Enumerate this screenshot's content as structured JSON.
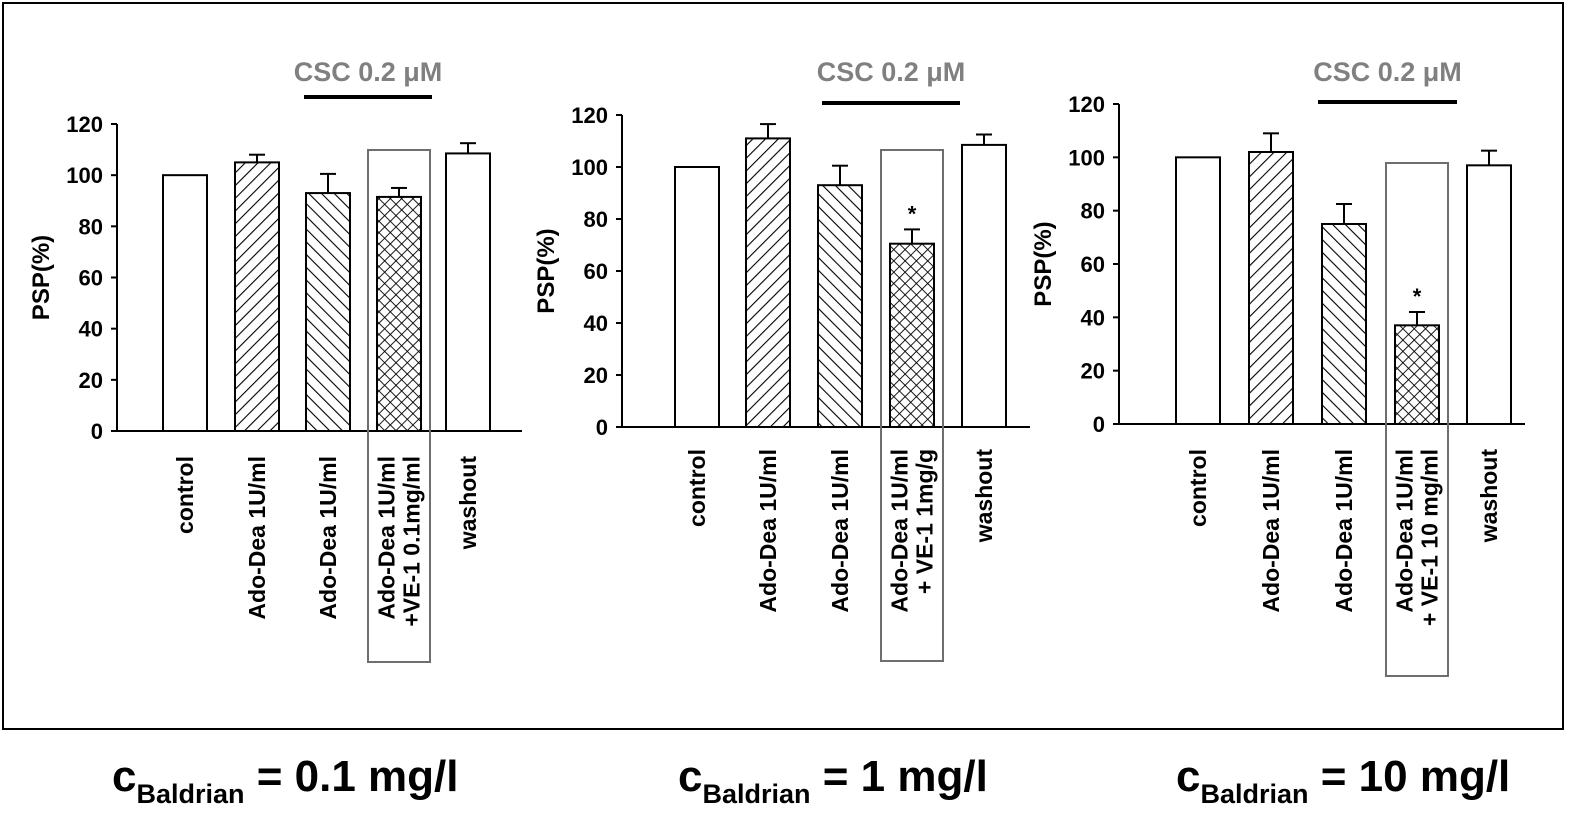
{
  "colors": {
    "ink": "#000000",
    "annotation_gray": "#808080",
    "box_gray": "#6e6e6e",
    "background": "#ffffff"
  },
  "chart_data": [
    {
      "type": "bar",
      "title": "",
      "annotation": "CSC 0.2 μM",
      "ylabel": "PSP(%)",
      "xlabel": "",
      "ylim": [
        0,
        120
      ],
      "yticks": [
        "0",
        "20",
        "40",
        "60",
        "80",
        "100",
        "120"
      ],
      "categories": [
        "control",
        "Ado-Dea 1U/ml",
        "Ado-Dea 1U/ml",
        "Ado-Dea 1U/ml +VE-1 0.1mg/ml",
        "washout"
      ],
      "category_lines": [
        [
          "control"
        ],
        [
          "Ado-Dea 1U/ml"
        ],
        [
          "Ado-Dea 1U/ml"
        ],
        [
          "Ado-Dea 1U/ml",
          "+VE-1 0.1mg/ml"
        ],
        [
          "washout"
        ]
      ],
      "values": [
        100,
        105,
        93,
        91.5,
        108.5
      ],
      "errors": [
        0,
        3,
        7.5,
        3.5,
        4
      ],
      "patterns": [
        "none",
        "diag-up",
        "diag-down",
        "crosshatch",
        "none"
      ],
      "significance": [
        "",
        "",
        "",
        "",
        ""
      ],
      "csc_bar_span": [
        2,
        3
      ],
      "boxed_category": 3,
      "grid": false
    },
    {
      "type": "bar",
      "title": "",
      "annotation": "CSC 0.2 μM",
      "ylabel": "PSP(%)",
      "xlabel": "",
      "ylim": [
        0,
        120
      ],
      "yticks": [
        "0",
        "20",
        "40",
        "60",
        "80",
        "100",
        "120"
      ],
      "categories": [
        "control",
        "Ado-Dea 1U/ml",
        "Ado-Dea 1U/ml",
        "Ado-Dea 1U/ml + VE-1 1mg/g",
        "washout"
      ],
      "category_lines": [
        [
          "control"
        ],
        [
          "Ado-Dea 1U/ml"
        ],
        [
          "Ado-Dea 1U/ml"
        ],
        [
          "Ado-Dea 1U/ml",
          "+ VE-1 1mg/g"
        ],
        [
          "washout"
        ]
      ],
      "values": [
        100,
        111,
        93,
        70.5,
        108.5
      ],
      "errors": [
        0,
        5.5,
        7.5,
        5.5,
        4
      ],
      "patterns": [
        "none",
        "diag-up",
        "diag-down",
        "crosshatch",
        "none"
      ],
      "significance": [
        "",
        "",
        "",
        "*",
        ""
      ],
      "csc_bar_span": [
        2,
        3
      ],
      "boxed_category": 3,
      "grid": false
    },
    {
      "type": "bar",
      "title": "",
      "annotation": "CSC 0.2 μM",
      "ylabel": "PSP(%)",
      "xlabel": "",
      "ylim": [
        0,
        120
      ],
      "yticks": [
        "0",
        "20",
        "40",
        "60",
        "80",
        "100",
        "120"
      ],
      "categories": [
        "control",
        "Ado-Dea 1U/ml",
        "Ado-Dea 1U/ml",
        "Ado-Dea 1U/ml + VE-1 10 mg/ml",
        "washout"
      ],
      "category_lines": [
        [
          "control"
        ],
        [
          "Ado-Dea 1U/ml"
        ],
        [
          "Ado-Dea 1U/ml"
        ],
        [
          "Ado-Dea 1U/ml",
          "+ VE-1 10 mg/ml"
        ],
        [
          "washout"
        ]
      ],
      "values": [
        100,
        102,
        75,
        37,
        97
      ],
      "errors": [
        0,
        7,
        7.5,
        5,
        5.5
      ],
      "patterns": [
        "none",
        "diag-up",
        "diag-down",
        "crosshatch",
        "none"
      ],
      "significance": [
        "",
        "",
        "",
        "*",
        ""
      ],
      "csc_bar_span": [
        2,
        3
      ],
      "boxed_category": 3,
      "grid": false
    }
  ],
  "captions": [
    {
      "symbol": "c",
      "subscript": "Baldrian",
      "value": " = 0.1 mg/l"
    },
    {
      "symbol": "c",
      "subscript": "Baldrian",
      "value": " = 1 mg/l"
    },
    {
      "symbol": "c",
      "subscript": "Baldrian",
      "value": " = 10 mg/l"
    }
  ]
}
